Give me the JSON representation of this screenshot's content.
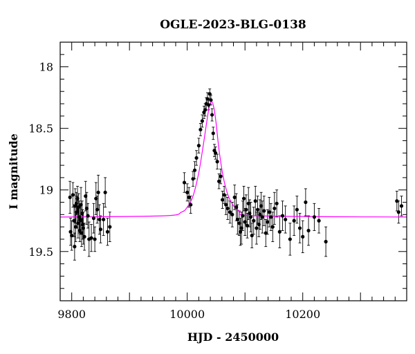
{
  "chart_data": {
    "type": "scatter",
    "title": "OGLE-2023-BLG-0138",
    "xlabel": "HJD - 2450000",
    "ylabel": "I magnitude",
    "xlim": [
      9780,
      10380
    ],
    "ylim": [
      19.9,
      17.8
    ],
    "y_inverted": true,
    "grid": false,
    "xticks": [
      9800,
      10000,
      10200
    ],
    "yticks": [
      18,
      18.5,
      19,
      19.5
    ],
    "model_color": "#ff00ff",
    "point_color": "#000000",
    "model": {
      "name": "",
      "baseline": 19.22,
      "peak_time": 10042,
      "peak_mag": 18.28,
      "x": [
        9780,
        9960,
        9990,
        10000,
        10010,
        10020,
        10028,
        10034,
        10038,
        10042,
        10046,
        10050,
        10056,
        10064,
        10074,
        10090,
        10120,
        10380
      ],
      "y": [
        19.22,
        19.21,
        19.18,
        19.14,
        19.05,
        18.86,
        18.63,
        18.44,
        18.33,
        18.28,
        18.33,
        18.46,
        18.71,
        18.93,
        19.08,
        19.17,
        19.21,
        19.22
      ]
    },
    "series": [
      {
        "name": "",
        "x": [
          9797,
          9798,
          9800,
          9802,
          9804,
          9805,
          9806,
          9807,
          9808,
          9809,
          9810,
          9811,
          9812,
          9813,
          9814,
          9815,
          9816,
          9817,
          9818,
          9819,
          9820,
          9822,
          9824,
          9826,
          9828,
          9830,
          9834,
          9838,
          9840,
          9842,
          9844,
          9846,
          9848,
          9850,
          9855,
          9858,
          9862,
          9866,
          9995,
          10000,
          10003,
          10006,
          10010,
          10013,
          10016,
          10020,
          10023,
          10026,
          10029,
          10031,
          10033,
          10035,
          10037,
          10039,
          10041,
          10043,
          10045,
          10047,
          10049,
          10052,
          10055,
          10058,
          10061,
          10064,
          10067,
          10070,
          10074,
          10078,
          10082,
          10085,
          10087,
          10090,
          10092,
          10094,
          10096,
          10098,
          10100,
          10102,
          10104,
          10106,
          10108,
          10110,
          10112,
          10115,
          10118,
          10120,
          10122,
          10124,
          10126,
          10128,
          10130,
          10133,
          10136,
          10139,
          10142,
          10145,
          10148,
          10151,
          10155,
          10160,
          10165,
          10170,
          10178,
          10185,
          10190,
          10195,
          10200,
          10205,
          10210,
          10220,
          10228,
          10240,
          10363,
          10366,
          10371
        ],
        "y": [
          19.06,
          19.34,
          19.37,
          19.04,
          19.25,
          19.46,
          19.13,
          19.3,
          19.11,
          19.18,
          19.07,
          19.27,
          19.14,
          19.22,
          19.33,
          19.24,
          19.12,
          19.35,
          19.19,
          19.28,
          19.31,
          19.38,
          19.05,
          19.15,
          19.21,
          19.4,
          19.39,
          19.23,
          19.4,
          19.07,
          19.16,
          19.02,
          19.24,
          19.32,
          19.24,
          19.02,
          19.34,
          19.3,
          18.94,
          19.02,
          19.06,
          19.12,
          18.91,
          18.84,
          18.74,
          18.64,
          18.51,
          18.44,
          18.37,
          18.35,
          18.3,
          18.26,
          18.31,
          18.22,
          18.27,
          18.39,
          18.54,
          18.68,
          18.7,
          18.77,
          18.93,
          18.89,
          19.08,
          19.04,
          19.12,
          19.15,
          19.18,
          19.2,
          19.06,
          19.14,
          19.24,
          19.27,
          19.34,
          19.31,
          19.21,
          19.07,
          19.26,
          19.16,
          19.29,
          19.11,
          19.19,
          19.22,
          19.37,
          19.25,
          19.09,
          19.31,
          19.16,
          19.28,
          19.2,
          19.13,
          19.22,
          19.17,
          19.35,
          19.26,
          19.18,
          19.22,
          19.3,
          19.15,
          19.11,
          19.34,
          19.21,
          19.24,
          19.4,
          19.25,
          19.16,
          19.31,
          19.38,
          19.1,
          19.33,
          19.22,
          19.25,
          19.42,
          19.09,
          19.18,
          19.13
        ],
        "err": [
          0.13,
          0.11,
          0.12,
          0.1,
          0.13,
          0.11,
          0.14,
          0.12,
          0.09,
          0.13,
          0.1,
          0.12,
          0.11,
          0.13,
          0.09,
          0.12,
          0.14,
          0.11,
          0.1,
          0.12,
          0.13,
          0.11,
          0.12,
          0.13,
          0.1,
          0.14,
          0.11,
          0.12,
          0.1,
          0.13,
          0.11,
          0.14,
          0.12,
          0.11,
          0.13,
          0.12,
          0.11,
          0.12,
          0.08,
          0.07,
          0.08,
          0.07,
          0.06,
          0.07,
          0.06,
          0.06,
          0.05,
          0.05,
          0.05,
          0.05,
          0.05,
          0.05,
          0.04,
          0.04,
          0.04,
          0.05,
          0.05,
          0.05,
          0.05,
          0.06,
          0.06,
          0.06,
          0.07,
          0.07,
          0.08,
          0.09,
          0.09,
          0.1,
          0.1,
          0.11,
          0.12,
          0.1,
          0.11,
          0.13,
          0.12,
          0.1,
          0.11,
          0.12,
          0.1,
          0.13,
          0.11,
          0.12,
          0.1,
          0.11,
          0.12,
          0.13,
          0.11,
          0.1,
          0.12,
          0.11,
          0.13,
          0.12,
          0.11,
          0.1,
          0.12,
          0.11,
          0.12,
          0.13,
          0.11,
          0.13,
          0.12,
          0.11,
          0.13,
          0.12,
          0.11,
          0.12,
          0.13,
          0.11,
          0.12,
          0.11,
          0.1,
          0.12,
          0.08,
          0.09,
          0.08
        ]
      }
    ]
  }
}
